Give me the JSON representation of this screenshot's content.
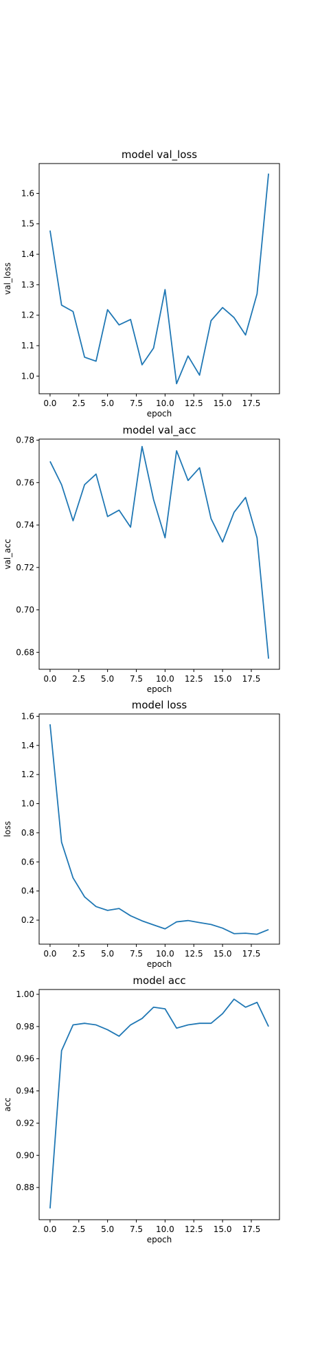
{
  "colors": {
    "line": "#1f77b4",
    "axes": "#000000",
    "background": "#ffffff"
  },
  "chart_data": [
    {
      "type": "line",
      "title": "model val_loss",
      "xlabel": "epoch",
      "ylabel": "val_loss",
      "grid": false,
      "legend": "none",
      "xlim": [
        -0.95,
        19.95
      ],
      "ylim": [
        0.942,
        1.698
      ],
      "xticks": [
        0.0,
        2.5,
        5.0,
        7.5,
        10.0,
        12.5,
        15.0,
        17.5
      ],
      "xtick_labels": [
        "0.0",
        "2.5",
        "5.0",
        "7.5",
        "10.0",
        "12.5",
        "15.0",
        "17.5"
      ],
      "yticks": [
        1.0,
        1.1,
        1.2,
        1.3,
        1.4,
        1.5,
        1.6
      ],
      "ytick_labels": [
        "1.0",
        "1.1",
        "1.2",
        "1.3",
        "1.4",
        "1.5",
        "1.6"
      ],
      "x": [
        0,
        1,
        2,
        3,
        4,
        5,
        6,
        7,
        8,
        9,
        10,
        11,
        12,
        13,
        14,
        15,
        16,
        17,
        18,
        19
      ],
      "series": [
        {
          "values": [
            1.478,
            1.233,
            1.212,
            1.062,
            1.049,
            1.218,
            1.168,
            1.186,
            1.037,
            1.092,
            1.284,
            0.975,
            1.066,
            1.003,
            1.182,
            1.225,
            1.192,
            1.135,
            1.27,
            1.665
          ]
        }
      ]
    },
    {
      "type": "line",
      "title": "model val_acc",
      "xlabel": "epoch",
      "ylabel": "val_acc",
      "grid": false,
      "legend": "none",
      "xlim": [
        -0.95,
        19.95
      ],
      "ylim": [
        0.672,
        0.7805
      ],
      "xticks": [
        0.0,
        2.5,
        5.0,
        7.5,
        10.0,
        12.5,
        15.0,
        17.5
      ],
      "xtick_labels": [
        "0.0",
        "2.5",
        "5.0",
        "7.5",
        "10.0",
        "12.5",
        "15.0",
        "17.5"
      ],
      "yticks": [
        0.68,
        0.7,
        0.72,
        0.74,
        0.76,
        0.78
      ],
      "ytick_labels": [
        "0.68",
        "0.70",
        "0.72",
        "0.74",
        "0.76",
        "0.78"
      ],
      "x": [
        0,
        1,
        2,
        3,
        4,
        5,
        6,
        7,
        8,
        9,
        10,
        11,
        12,
        13,
        14,
        15,
        16,
        17,
        18,
        19
      ],
      "series": [
        {
          "values": [
            0.77,
            0.759,
            0.742,
            0.759,
            0.764,
            0.744,
            0.747,
            0.739,
            0.777,
            0.752,
            0.734,
            0.775,
            0.761,
            0.767,
            0.743,
            0.732,
            0.746,
            0.753,
            0.734,
            0.677
          ]
        }
      ]
    },
    {
      "type": "line",
      "title": "model loss",
      "xlabel": "epoch",
      "ylabel": "loss",
      "grid": false,
      "legend": "none",
      "xlim": [
        -0.95,
        19.95
      ],
      "ylim": [
        0.035,
        1.616
      ],
      "xticks": [
        0.0,
        2.5,
        5.0,
        7.5,
        10.0,
        12.5,
        15.0,
        17.5
      ],
      "xtick_labels": [
        "0.0",
        "2.5",
        "5.0",
        "7.5",
        "10.0",
        "12.5",
        "15.0",
        "17.5"
      ],
      "yticks": [
        0.2,
        0.4,
        0.6,
        0.8,
        1.0,
        1.2,
        1.4,
        1.6
      ],
      "ytick_labels": [
        "0.2",
        "0.4",
        "0.6",
        "0.8",
        "1.0",
        "1.2",
        "1.4",
        "1.6"
      ],
      "x": [
        0,
        1,
        2,
        3,
        4,
        5,
        6,
        7,
        8,
        9,
        10,
        11,
        12,
        13,
        14,
        15,
        16,
        17,
        18,
        19
      ],
      "series": [
        {
          "values": [
            1.545,
            0.735,
            0.49,
            0.36,
            0.293,
            0.267,
            0.28,
            0.23,
            0.195,
            0.167,
            0.14,
            0.188,
            0.197,
            0.183,
            0.17,
            0.145,
            0.107,
            0.11,
            0.103,
            0.135
          ]
        }
      ]
    },
    {
      "type": "line",
      "title": "model acc",
      "xlabel": "epoch",
      "ylabel": "acc",
      "grid": false,
      "legend": "none",
      "xlim": [
        -0.95,
        19.95
      ],
      "ylim": [
        0.86,
        1.003
      ],
      "xticks": [
        0.0,
        2.5,
        5.0,
        7.5,
        10.0,
        12.5,
        15.0,
        17.5
      ],
      "xtick_labels": [
        "0.0",
        "2.5",
        "5.0",
        "7.5",
        "10.0",
        "12.5",
        "15.0",
        "17.5"
      ],
      "yticks": [
        0.88,
        0.9,
        0.92,
        0.94,
        0.96,
        0.98,
        1.0
      ],
      "ytick_labels": [
        "0.88",
        "0.90",
        "0.92",
        "0.94",
        "0.96",
        "0.98",
        "1.00"
      ],
      "x": [
        0,
        1,
        2,
        3,
        4,
        5,
        6,
        7,
        8,
        9,
        10,
        11,
        12,
        13,
        14,
        15,
        16,
        17,
        18,
        19
      ],
      "series": [
        {
          "values": [
            0.867,
            0.965,
            0.981,
            0.982,
            0.981,
            0.978,
            0.974,
            0.981,
            0.985,
            0.992,
            0.991,
            0.979,
            0.981,
            0.982,
            0.982,
            0.988,
            0.997,
            0.992,
            0.995,
            0.98
          ]
        }
      ]
    }
  ]
}
